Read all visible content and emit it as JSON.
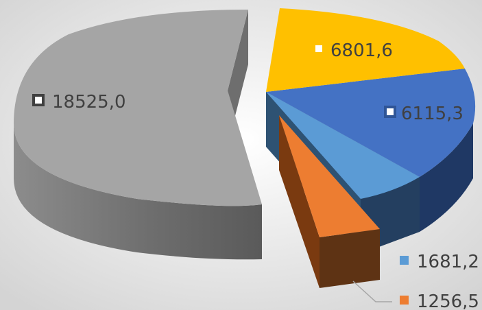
{
  "chart_data": {
    "type": "pie",
    "style": "3d-exploded",
    "values": [
      6801.6,
      6115.3,
      1681.2,
      1256.5,
      18525.0
    ],
    "labels": [
      "6801,6",
      "6115,3",
      "1681,2",
      "1256,5",
      "18525,0"
    ],
    "colors": [
      "#FFC000",
      "#4472C4",
      "#5B9BD5",
      "#ED7D31",
      "#A5A5A5"
    ],
    "legend": "none"
  },
  "background": "#E8E8E8"
}
